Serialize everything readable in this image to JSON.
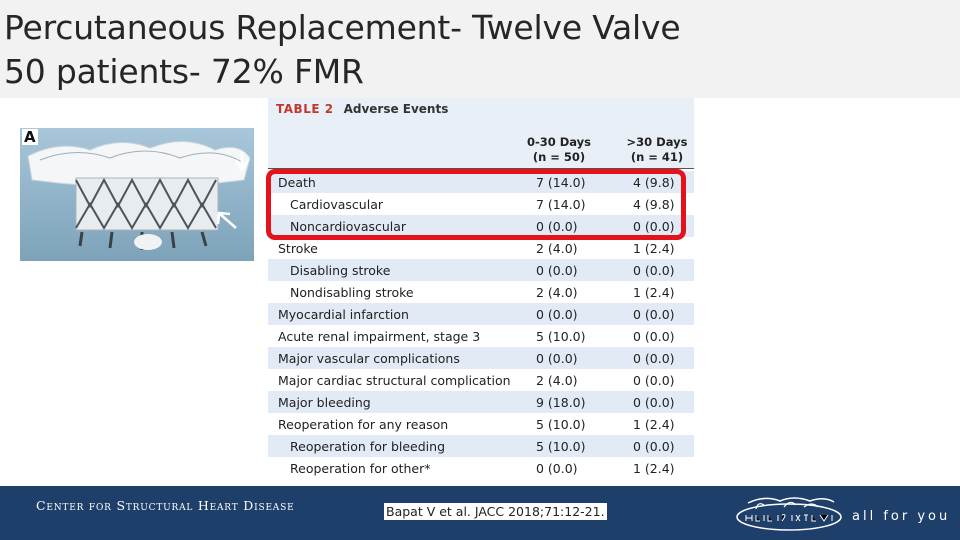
{
  "title": {
    "line1": "Percutaneous Replacement- Twelve Valve",
    "line2": "50 patients- 72% FMR"
  },
  "figure": {
    "panel_label": "A"
  },
  "table": {
    "label": "TABLE 2",
    "title": "Adverse Events",
    "col1_line1": "0-30 Days",
    "col1_line2": "(n = 50)",
    "col2_line1": ">30 Days",
    "col2_line2": "(n = 41)",
    "rows": [
      {
        "label": "Death",
        "v1": "7 (14.0)",
        "v2": "4 (9.8)",
        "indent": 0
      },
      {
        "label": "Cardiovascular",
        "v1": "7 (14.0)",
        "v2": "4 (9.8)",
        "indent": 1
      },
      {
        "label": "Noncardiovascular",
        "v1": "0 (0.0)",
        "v2": "0 (0.0)",
        "indent": 1
      },
      {
        "label": "Stroke",
        "v1": "2 (4.0)",
        "v2": "1 (2.4)",
        "indent": 0
      },
      {
        "label": "Disabling stroke",
        "v1": "0 (0.0)",
        "v2": "0 (0.0)",
        "indent": 1
      },
      {
        "label": "Nondisabling stroke",
        "v1": "2 (4.0)",
        "v2": "1 (2.4)",
        "indent": 1
      },
      {
        "label": "Myocardial infarction",
        "v1": "0 (0.0)",
        "v2": "0 (0.0)",
        "indent": 0
      },
      {
        "label": "Acute renal impairment, stage 3",
        "v1": "5 (10.0)",
        "v2": "0 (0.0)",
        "indent": 0
      },
      {
        "label": "Major vascular complications",
        "v1": "0 (0.0)",
        "v2": "0 (0.0)",
        "indent": 0
      },
      {
        "label": "Major cardiac structural complication",
        "v1": "2 (4.0)",
        "v2": "0 (0.0)",
        "indent": 0
      },
      {
        "label": "Major bleeding",
        "v1": "9 (18.0)",
        "v2": "0 (0.0)",
        "indent": 0
      },
      {
        "label": "Reoperation for any reason",
        "v1": "5 (10.0)",
        "v2": "1 (2.4)",
        "indent": 0
      },
      {
        "label": "Reoperation for bleeding",
        "v1": "5 (10.0)",
        "v2": "0 (0.0)",
        "indent": 1
      },
      {
        "label": "Reoperation for other*",
        "v1": "0 (0.0)",
        "v2": "1 (2.4)",
        "indent": 1
      }
    ]
  },
  "footer": {
    "center_name": "Center for Structural Heart Disease",
    "citation": "Bapat V et al. JACC 2018;71:12-21.",
    "logo_text": "Henry Ford Health System",
    "tagline": "all for you"
  },
  "colors": {
    "footer_bg": "#1f3f6b",
    "highlight": "#e3121b",
    "row_shade": "#e1eaf5"
  }
}
